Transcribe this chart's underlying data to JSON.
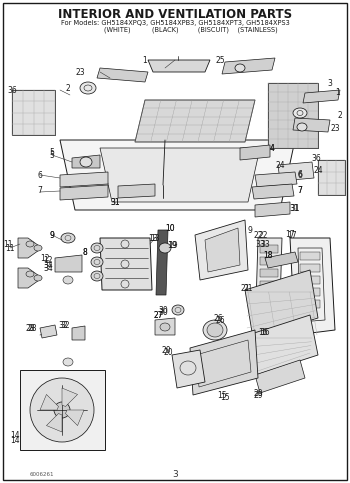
{
  "title": "INTERIOR AND VENTILATION PARTS",
  "subtitle1": "For Models: GH5184XPQ3, GH5184XPB3, GH5184XPT3, GH5184XPS3",
  "subtitle2": "               (WHITE)          (BLACK)         (BISCUIT)    (STAINLESS)",
  "doc_number": "6006261",
  "page_number": "3",
  "bg_color": "#ffffff",
  "title_fontsize": 8.5,
  "subtitle_fontsize": 4.8,
  "footer_doc_fontsize": 4.0,
  "footer_page_fontsize": 6.5
}
